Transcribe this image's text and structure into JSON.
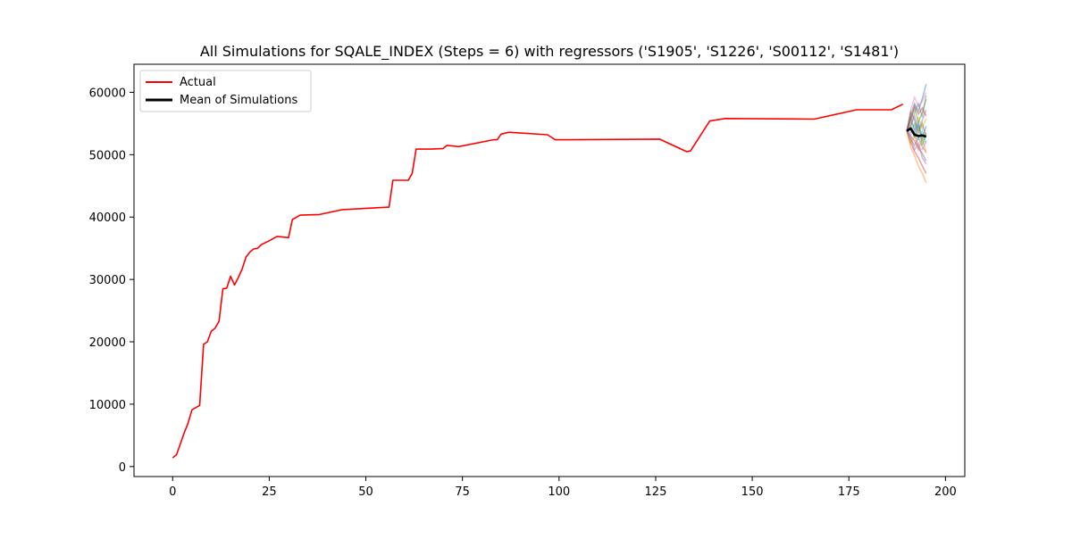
{
  "chart_data": {
    "type": "line",
    "title": "All Simulations for SQALE_INDEX (Steps = 6) with regressors ('S1905', 'S1226', 'S00112', 'S1481')",
    "xlabel": "",
    "ylabel": "",
    "xlim": [
      -10,
      205
    ],
    "ylim": [
      -1600,
      64500
    ],
    "xticks": [
      0,
      25,
      50,
      75,
      100,
      125,
      150,
      175,
      200
    ],
    "yticks": [
      0,
      10000,
      20000,
      30000,
      40000,
      50000,
      60000
    ],
    "grid": false,
    "legend_position": "top-left",
    "series": [
      {
        "name": "Actual",
        "color": "#ff0000",
        "x": [
          0,
          1,
          3,
          4,
          5,
          7,
          8,
          9,
          10,
          11,
          12,
          13,
          14,
          15,
          16,
          17,
          18,
          19,
          20,
          21,
          22,
          23,
          25,
          27,
          30,
          31,
          33,
          38,
          44,
          56,
          57,
          61,
          62,
          63,
          67,
          70,
          71,
          74,
          83,
          84,
          85,
          87,
          97,
          99,
          126,
          133,
          134,
          139,
          143,
          166,
          177,
          186,
          189
        ],
        "y": [
          1400,
          1900,
          5400,
          7000,
          9100,
          9800,
          19600,
          20000,
          21700,
          22200,
          23300,
          28500,
          28600,
          30500,
          29100,
          30300,
          31700,
          33600,
          34400,
          34900,
          35000,
          35600,
          36200,
          36900,
          36700,
          39600,
          40300,
          40400,
          41200,
          41600,
          45900,
          45900,
          47000,
          50900,
          50900,
          51000,
          51500,
          51300,
          52400,
          52400,
          53300,
          53600,
          53200,
          52400,
          52500,
          50500,
          50600,
          55400,
          55800,
          55700,
          57200,
          57200,
          58100
        ]
      },
      {
        "name": "Mean of Simulations",
        "color": "#000000",
        "x": [
          190,
          191,
          192,
          193,
          194,
          195
        ],
        "y": [
          53800,
          54200,
          53200,
          53000,
          53100,
          52900
        ]
      }
    ],
    "simulations": {
      "x": [
        190,
        191,
        192,
        193,
        194,
        195
      ],
      "colors": [
        "#1f77b4",
        "#ff7f0e",
        "#2ca02c",
        "#d62728",
        "#9467bd",
        "#8c564b",
        "#e377c2",
        "#7f7f7f",
        "#bcbd22",
        "#17becf"
      ],
      "paths": [
        [
          53800,
          56500,
          58200,
          57000,
          59000,
          61300
        ],
        [
          53800,
          51200,
          49800,
          48200,
          47000,
          45500
        ],
        [
          53800,
          55800,
          57500,
          55200,
          56800,
          58900
        ],
        [
          53800,
          52000,
          50500,
          49500,
          48200,
          47000
        ],
        [
          53800,
          54800,
          56200,
          54000,
          55500,
          57200
        ],
        [
          53800,
          53000,
          52200,
          51000,
          50200,
          49000
        ],
        [
          53800,
          57200,
          59200,
          57800,
          58500,
          60000
        ],
        [
          53800,
          52500,
          51500,
          52800,
          51200,
          50500
        ],
        [
          53800,
          55200,
          54500,
          56000,
          54200,
          55800
        ],
        [
          53800,
          53500,
          55000,
          52500,
          53800,
          51800
        ],
        [
          53800,
          56000,
          53800,
          55200,
          52500,
          54600
        ],
        [
          53800,
          51800,
          53200,
          50800,
          52800,
          50200
        ],
        [
          53800,
          54500,
          52800,
          54800,
          51500,
          53500
        ],
        [
          53800,
          55500,
          57800,
          56500,
          57500,
          56200
        ],
        [
          53800,
          52800,
          50800,
          51800,
          49500,
          48500
        ],
        [
          53800,
          56800,
          55500,
          53500,
          55000,
          52800
        ],
        [
          53800,
          53200,
          54200,
          51200,
          50800,
          52200
        ],
        [
          53800,
          54200,
          56800,
          58200,
          56000,
          59500
        ]
      ]
    }
  }
}
